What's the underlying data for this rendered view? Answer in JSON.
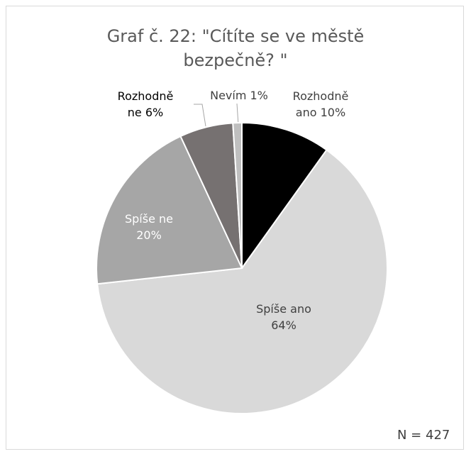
{
  "chart_data": {
    "type": "pie",
    "title": "Graf č. 22: \"Cítíte se ve městě bezpečně? \"",
    "categories": [
      "Rozhodně ano",
      "Spíše ano",
      "Spíše ne",
      "Rozhodně ne",
      "Nevím"
    ],
    "values": [
      10,
      64,
      20,
      6,
      1
    ],
    "value_labels": [
      "10%",
      "64%",
      "20%",
      "6%",
      "1%"
    ],
    "colors": [
      "#000000",
      "#d9d9d9",
      "#a6a6a6",
      "#767171",
      "#bfbfbf"
    ],
    "annotation": "N = 427"
  }
}
